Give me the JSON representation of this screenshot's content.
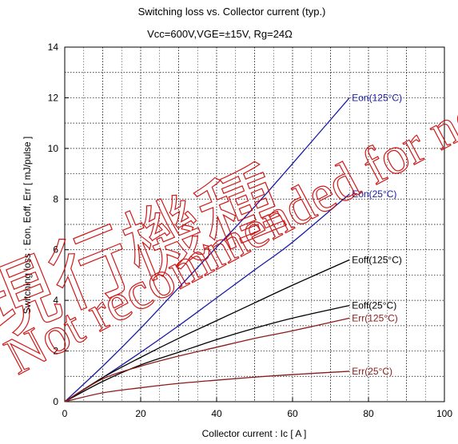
{
  "chart_data": {
    "type": "line",
    "title": "Switching loss  vs.  Collector current  (typ.)",
    "subtitle": "Vcc=600V,VGE=±15V, Rg=24Ω",
    "xlabel": "Collector current  :  Ic  [ A ]",
    "ylabel": "Switching loss  :  Eon, Eoff, Err  [ mJ/pulse ]",
    "xlim": [
      0,
      100
    ],
    "ylim": [
      0,
      14
    ],
    "x_ticks": [
      "0",
      "20",
      "40",
      "60",
      "80",
      "100"
    ],
    "y_ticks": [
      "0",
      "2",
      "4",
      "6",
      "8",
      "10",
      "12",
      "14"
    ],
    "grid": true,
    "series": [
      {
        "name": "Eon(125°C)",
        "color": "#1a1aa6",
        "x": [
          0,
          10,
          20,
          30,
          40,
          50,
          60,
          75
        ],
        "y": [
          0,
          1.4,
          2.9,
          4.5,
          6.1,
          7.7,
          9.4,
          12.0
        ]
      },
      {
        "name": "Eon(25°C)",
        "color": "#1a1aa6",
        "x": [
          0,
          10,
          20,
          30,
          40,
          50,
          60,
          75
        ],
        "y": [
          0,
          0.95,
          1.95,
          3.0,
          4.1,
          5.2,
          6.3,
          8.2
        ]
      },
      {
        "name": "Eoff(125°C)",
        "color": "#000000",
        "x": [
          0,
          10,
          20,
          30,
          40,
          50,
          60,
          75
        ],
        "y": [
          0,
          0.95,
          1.75,
          2.5,
          3.2,
          3.9,
          4.6,
          5.6
        ]
      },
      {
        "name": "Eoff(25°C)",
        "color": "#000000",
        "x": [
          0,
          10,
          20,
          30,
          40,
          50,
          60,
          75
        ],
        "y": [
          0,
          0.8,
          1.45,
          1.95,
          2.45,
          2.9,
          3.3,
          3.8
        ]
      },
      {
        "name": "Err(125°C)",
        "color": "#8b1a1a",
        "x": [
          0,
          10,
          20,
          30,
          40,
          50,
          60,
          75
        ],
        "y": [
          0,
          0.9,
          1.4,
          1.8,
          2.15,
          2.5,
          2.8,
          3.3
        ]
      },
      {
        "name": "Err(25°C)",
        "color": "#8b1a1a",
        "x": [
          0,
          10,
          20,
          30,
          40,
          50,
          60,
          75
        ],
        "y": [
          0,
          0.35,
          0.55,
          0.72,
          0.85,
          0.97,
          1.07,
          1.2
        ]
      }
    ],
    "watermark": [
      "Not recommended for new design",
      "現行機種"
    ],
    "watermark_color": "#cc0000"
  }
}
